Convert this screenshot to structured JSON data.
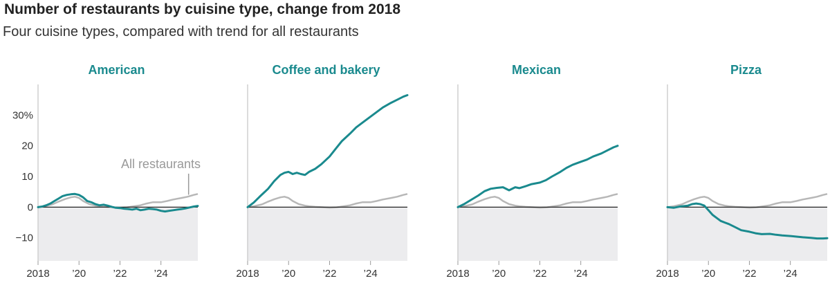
{
  "title": "Number of restaurants by cuisine type, change from 2018",
  "subtitle": "Four cuisine types, compared with trend for all restaurants",
  "chart_data": {
    "type": "line",
    "y_tick_labels": [
      "30%",
      "20",
      "10",
      "0",
      "−10"
    ],
    "y_ticks": [
      30,
      20,
      10,
      0,
      -10
    ],
    "ylim": [
      -17.5,
      40
    ],
    "xlim": [
      2018,
      2025.8
    ],
    "x_ticks": [
      2018,
      2020,
      2022,
      2024
    ],
    "x_tick_labels": [
      "2018",
      "’20",
      "’22",
      "’24"
    ],
    "annotation": "All restaurants",
    "colors": {
      "cuisine": "#1a8a8e",
      "all": "#b7b7b7",
      "negative_fill": "#ececee"
    },
    "all_restaurants": {
      "name": "All restaurants",
      "x": [
        2018,
        2018.3,
        2018.7,
        2019.0,
        2019.3,
        2019.6,
        2019.8,
        2020.0,
        2020.2,
        2020.5,
        2020.8,
        2021.0,
        2021.3,
        2021.6,
        2022.0,
        2022.3,
        2022.6,
        2023.0,
        2023.3,
        2023.6,
        2024.0,
        2024.3,
        2024.6,
        2025.0,
        2025.3,
        2025.6,
        2025.8
      ],
      "values": [
        0,
        0.3,
        0.9,
        1.8,
        2.6,
        3.2,
        3.4,
        3.0,
        2.0,
        1.0,
        0.5,
        0.3,
        0.1,
        0,
        -0.2,
        -0.1,
        0.2,
        0.6,
        1.2,
        1.6,
        1.6,
        2.0,
        2.5,
        3.0,
        3.4,
        4.0,
        4.3
      ]
    },
    "panels": [
      {
        "name": "American",
        "x": [
          2018,
          2018.2,
          2018.4,
          2018.6,
          2018.8,
          2019.0,
          2019.2,
          2019.4,
          2019.6,
          2019.8,
          2020.0,
          2020.2,
          2020.4,
          2020.6,
          2020.8,
          2021.0,
          2021.2,
          2021.4,
          2021.6,
          2021.8,
          2022.0,
          2022.2,
          2022.4,
          2022.6,
          2022.8,
          2023.0,
          2023.2,
          2023.4,
          2023.6,
          2023.8,
          2024.0,
          2024.2,
          2024.4,
          2024.6,
          2024.8,
          2025.0,
          2025.2,
          2025.4,
          2025.6,
          2025.8
        ],
        "values": [
          0,
          0.2,
          0.6,
          1.2,
          2.0,
          2.8,
          3.6,
          4.0,
          4.2,
          4.3,
          4.0,
          3.2,
          2.0,
          1.6,
          1.0,
          0.6,
          0.8,
          0.5,
          0.1,
          -0.2,
          -0.3,
          -0.5,
          -0.6,
          -0.8,
          -0.5,
          -1.0,
          -0.8,
          -0.5,
          -0.6,
          -0.8,
          -1.2,
          -1.4,
          -1.2,
          -1.0,
          -0.8,
          -0.6,
          -0.4,
          -0.1,
          0.2,
          0.4
        ]
      },
      {
        "name": "Coffee and bakery",
        "x": [
          2018,
          2018.3,
          2018.6,
          2019.0,
          2019.3,
          2019.6,
          2019.8,
          2020.0,
          2020.2,
          2020.4,
          2020.6,
          2020.8,
          2021.0,
          2021.3,
          2021.6,
          2022.0,
          2022.3,
          2022.6,
          2023.0,
          2023.3,
          2023.6,
          2024.0,
          2024.3,
          2024.6,
          2025.0,
          2025.3,
          2025.6,
          2025.8
        ],
        "values": [
          0,
          1.5,
          3.5,
          6.0,
          8.5,
          10.5,
          11.2,
          11.5,
          10.8,
          11.2,
          10.8,
          10.5,
          11.5,
          12.5,
          14.0,
          16.5,
          19.0,
          21.5,
          24.0,
          26.0,
          27.5,
          29.5,
          31.0,
          32.5,
          34.0,
          35.0,
          36.0,
          36.5
        ]
      },
      {
        "name": "Mexican",
        "x": [
          2018,
          2018.3,
          2018.6,
          2019.0,
          2019.3,
          2019.6,
          2019.9,
          2020.2,
          2020.5,
          2020.8,
          2021.0,
          2021.3,
          2021.6,
          2022.0,
          2022.3,
          2022.6,
          2023.0,
          2023.3,
          2023.6,
          2024.0,
          2024.3,
          2024.6,
          2025.0,
          2025.3,
          2025.6,
          2025.8
        ],
        "values": [
          0,
          1.0,
          2.2,
          3.8,
          5.2,
          6.0,
          6.3,
          6.5,
          5.5,
          6.5,
          6.2,
          6.8,
          7.5,
          8.0,
          8.8,
          10.0,
          11.5,
          12.8,
          13.8,
          14.8,
          15.5,
          16.5,
          17.5,
          18.5,
          19.5,
          20.0
        ]
      },
      {
        "name": "Pizza",
        "x": [
          2018,
          2018.3,
          2018.6,
          2019.0,
          2019.2,
          2019.4,
          2019.6,
          2019.8,
          2020.0,
          2020.2,
          2020.4,
          2020.6,
          2020.8,
          2021.0,
          2021.3,
          2021.6,
          2022.0,
          2022.3,
          2022.6,
          2023.0,
          2023.3,
          2023.6,
          2024.0,
          2024.3,
          2024.6,
          2025.0,
          2025.3,
          2025.6,
          2025.8
        ],
        "values": [
          0,
          -0.2,
          0.2,
          0.5,
          1.0,
          1.2,
          1.0,
          0.5,
          -1.0,
          -2.5,
          -3.5,
          -4.5,
          -5.0,
          -5.5,
          -6.5,
          -7.5,
          -8.0,
          -8.5,
          -8.8,
          -8.7,
          -9.0,
          -9.2,
          -9.4,
          -9.6,
          -9.8,
          -10.0,
          -10.2,
          -10.2,
          -10.1
        ]
      }
    ]
  }
}
